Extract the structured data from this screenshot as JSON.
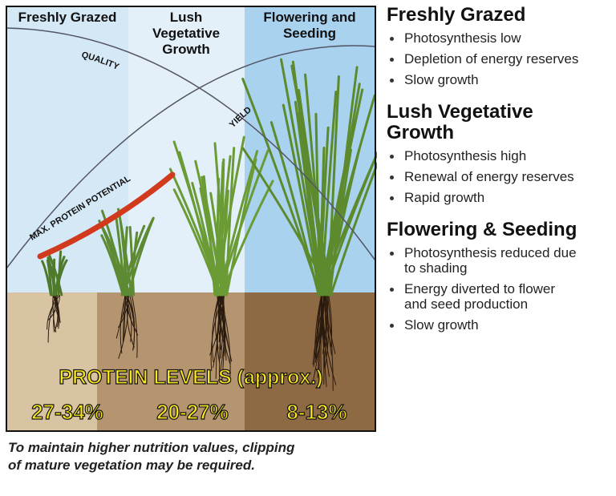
{
  "panel": {
    "columns": [
      [
        "Freshly Grazed"
      ],
      [
        "Lush",
        "Vegetative",
        "Growth"
      ],
      [
        "Flowering and",
        "Seeding"
      ]
    ],
    "curves": {
      "quality": "QUALITY",
      "yield": "YIELD",
      "protein": "MAX. PROTEIN POTENTIAL"
    },
    "protein_title": "PROTEIN LEVELS (approx.)",
    "protein_levels": [
      "27-34%",
      "20-27%",
      "8-13%"
    ]
  },
  "stages": [
    {
      "title": [
        "Freshly Grazed"
      ],
      "bullets": [
        [
          "Photosynthesis low"
        ],
        [
          "Depletion of energy reserves"
        ],
        [
          "Slow growth"
        ]
      ]
    },
    {
      "title": [
        "Lush Vegetative",
        "Growth"
      ],
      "bullets": [
        [
          "Photosynthesis high"
        ],
        [
          "Renewal of energy reserves"
        ],
        [
          "Rapid growth"
        ]
      ]
    },
    {
      "title": [
        "Flowering & Seeding"
      ],
      "bullets": [
        [
          "Photosynthesis reduced due",
          "to shading"
        ],
        [
          "Energy diverted to flower",
          "and seed production"
        ],
        [
          "Slow growth"
        ]
      ]
    }
  ],
  "caption": [
    "To maintain higher nutrition values, clipping",
    "of mature vegetation may be required."
  ]
}
